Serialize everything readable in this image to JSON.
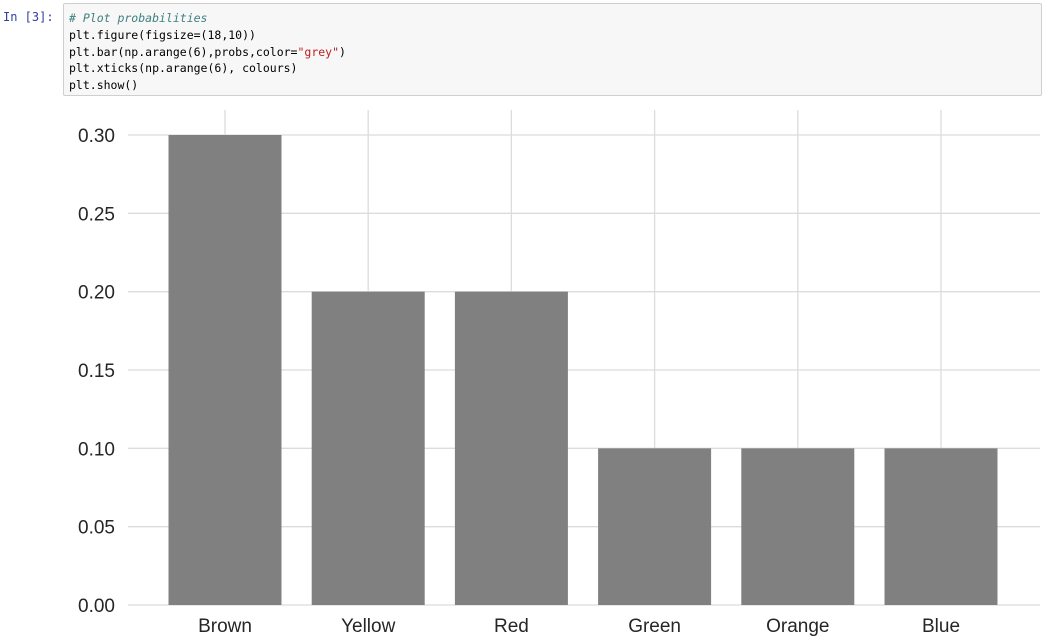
{
  "cell": {
    "prompt": "In [3]:",
    "code_lines": [
      {
        "segments": [
          {
            "text": "# Plot probabilities",
            "kind": "comment"
          }
        ]
      },
      {
        "segments": [
          {
            "text": "plt.figure(figsize=(18,10))",
            "kind": "plain"
          }
        ]
      },
      {
        "segments": [
          {
            "text": "plt.bar(np.arange(6),probs,color=",
            "kind": "plain"
          },
          {
            "text": "\"grey\"",
            "kind": "string"
          },
          {
            "text": ")",
            "kind": "plain"
          }
        ]
      },
      {
        "segments": [
          {
            "text": "plt.xticks(np.arange(6), colours)",
            "kind": "plain"
          }
        ]
      },
      {
        "segments": [
          {
            "text": "plt.show()",
            "kind": "plain"
          }
        ]
      }
    ]
  },
  "chart_data": {
    "type": "bar",
    "categories": [
      "Brown",
      "Yellow",
      "Red",
      "Green",
      "Orange",
      "Blue"
    ],
    "values": [
      0.3,
      0.2,
      0.2,
      0.1,
      0.1,
      0.1
    ],
    "bar_color": "#808080",
    "grid_color": "#dcdcdc",
    "ylim": [
      0,
      0.3
    ],
    "yticks": [
      0.0,
      0.05,
      0.1,
      0.15,
      0.2,
      0.25,
      0.3
    ],
    "ytick_labels": [
      "0.00",
      "0.05",
      "0.10",
      "0.15",
      "0.20",
      "0.25",
      "0.30"
    ],
    "grid": true,
    "title": "",
    "xlabel": "",
    "ylabel": ""
  }
}
